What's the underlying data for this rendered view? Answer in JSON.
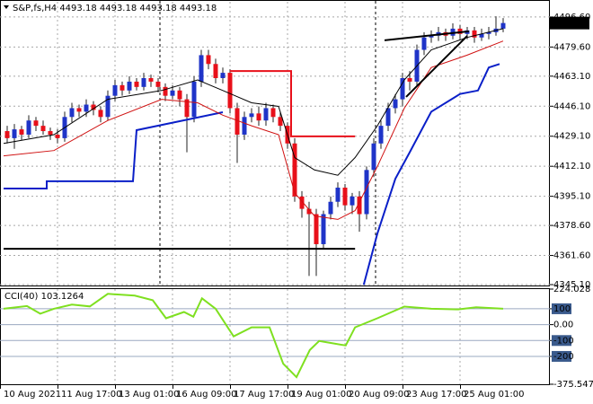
{
  "chart_data": [
    {
      "type": "candlestick",
      "title": "S&P,fs,H4  4493.18 4493.18 4493.18 4493.18",
      "up_color": "#1f34c8",
      "down_color": "#e8101a",
      "price_tag": 4493.18,
      "grid": true,
      "xlim": [
        -1,
        75.5
      ],
      "ylim": [
        4344.6,
        4505.2
      ],
      "yticks": [
        {
          "value": 4496.6,
          "label": "4496.60"
        },
        {
          "value": 4479.6,
          "label": "4479.60"
        },
        {
          "value": 4463.1,
          "label": "4463.10"
        },
        {
          "value": 4446.1,
          "label": "4446.10"
        },
        {
          "value": 4429.1,
          "label": "4429.10"
        },
        {
          "value": 4412.1,
          "label": "4412.10"
        },
        {
          "value": 4395.1,
          "label": "4395.10"
        },
        {
          "value": 4378.6,
          "label": "4378.60"
        },
        {
          "value": 4361.6,
          "label": "4361.60"
        },
        {
          "value": 4345.1,
          "label": "4345.10"
        }
      ],
      "xticks": [
        {
          "value": -1,
          "label": "10 Aug 2021"
        },
        {
          "value": 7,
          "label": "11 Aug 17:00"
        },
        {
          "value": 15,
          "label": "13 Aug 01:00"
        },
        {
          "value": 23,
          "label": "16 Aug 09:00"
        },
        {
          "value": 31,
          "label": "17 Aug 17:00"
        },
        {
          "value": 39,
          "label": "19 Aug 01:00"
        },
        {
          "value": 47,
          "label": "20 Aug 09:00"
        },
        {
          "value": 55,
          "label": "23 Aug 17:00"
        },
        {
          "value": 63,
          "label": "25 Aug 01:00"
        }
      ],
      "open": [
        4432,
        4428,
        4433,
        4430,
        4438,
        4435,
        4432,
        4430,
        4428,
        4440,
        4445,
        4443,
        4447,
        4444,
        4440,
        4452,
        4458,
        4455,
        4460,
        4457,
        4462,
        4460,
        4457,
        4452,
        4455,
        4450,
        4440,
        4460,
        4475,
        4470,
        4462,
        4465,
        4445,
        4430,
        4440,
        4442,
        4438,
        4445,
        4440,
        4435,
        4425,
        4395,
        4388,
        4385,
        4368,
        4385,
        4392,
        4400,
        4390,
        4395,
        4385,
        4410,
        4425,
        4435,
        4445,
        4450,
        4462,
        4460,
        4478,
        4485,
        4486,
        4488,
        4486,
        4490,
        4487,
        4489,
        4485,
        4487,
        4488,
        4490
      ],
      "high": [
        4435,
        4436,
        4435,
        4441,
        4440,
        4438,
        4434,
        4433,
        4443,
        4448,
        4447,
        4450,
        4449,
        4446,
        4455,
        4461,
        4460,
        4463,
        4462,
        4465,
        4464,
        4462,
        4459,
        4458,
        4457,
        4453,
        4463,
        4478,
        4478,
        4473,
        4468,
        4467,
        4448,
        4443,
        4445,
        4446,
        4448,
        4447,
        4443,
        4437,
        4428,
        4398,
        4392,
        4388,
        4387,
        4395,
        4403,
        4402,
        4397,
        4398,
        4412,
        4428,
        4438,
        4448,
        4453,
        4465,
        4466,
        4481,
        4488,
        4489,
        4491,
        4490,
        4493,
        4492,
        4491,
        4491,
        4490,
        4491,
        4497,
        4496
      ],
      "low": [
        4425,
        4422,
        4427,
        4428,
        4432,
        4430,
        4427,
        4425,
        4426,
        4437,
        4440,
        4440,
        4441,
        4437,
        4438,
        4449,
        4452,
        4453,
        4455,
        4455,
        4457,
        4454,
        4449,
        4450,
        4446,
        4420,
        4437,
        4457,
        4467,
        4459,
        4459,
        4442,
        4414,
        4427,
        4437,
        4435,
        4435,
        4437,
        4432,
        4422,
        4392,
        4383,
        4350,
        4350,
        4365,
        4382,
        4389,
        4387,
        4385,
        4375,
        4382,
        4406,
        4422,
        4432,
        4442,
        4446,
        4455,
        4457,
        4475,
        4482,
        4483,
        4483,
        4484,
        4484,
        4484,
        4482,
        4483,
        4484,
        4486,
        4488
      ],
      "close": [
        4428,
        4433,
        4430,
        4438,
        4435,
        4432,
        4430,
        4428,
        4440,
        4445,
        4443,
        4447,
        4444,
        4440,
        4452,
        4458,
        4455,
        4460,
        4457,
        4462,
        4460,
        4457,
        4452,
        4455,
        4450,
        4440,
        4460,
        4475,
        4470,
        4462,
        4465,
        4445,
        4430,
        4440,
        4442,
        4438,
        4445,
        4440,
        4435,
        4425,
        4395,
        4388,
        4385,
        4368,
        4385,
        4392,
        4400,
        4390,
        4395,
        4385,
        4410,
        4425,
        4435,
        4445,
        4450,
        4462,
        4460,
        4478,
        4485,
        4486,
        4488,
        4486,
        4490,
        4487,
        4489,
        4485,
        4487,
        4488,
        4490,
        4493.18
      ],
      "series": [
        {
          "color": "#0a1fc8",
          "width": 2,
          "x": [
            -0.5,
            5.5,
            5.5,
            17.5,
            18,
            30,
            40,
            49.6,
            51.5,
            54,
            56,
            59,
            63,
            65.5,
            67,
            68.5
          ],
          "values": [
            4399.5,
            4399.5,
            4403.6,
            4403.6,
            4432.5,
            4442.7,
            null,
            4345,
            4374,
            4405,
            4420,
            4443,
            4453,
            4455,
            4468,
            4470
          ]
        },
        {
          "color": "#000000",
          "width": 1,
          "x": [
            -0.5,
            6.5,
            14,
            21.5,
            26.5,
            30,
            34,
            37.75,
            40,
            42.75,
            46,
            48.4,
            51.5,
            55.25,
            59,
            64,
            69
          ],
          "values": [
            4425,
            4430,
            4450,
            4455,
            4461,
            4455,
            4448,
            4446,
            4417,
            4410,
            4407,
            4417,
            4435,
            4461,
            4478,
            4485,
            4490
          ]
        },
        {
          "color": "#d01010",
          "width": 1,
          "x": [
            -0.5,
            6.5,
            14,
            21.5,
            26.5,
            30,
            34,
            37.75,
            40,
            42.75,
            46,
            48.4,
            51.5,
            55.25,
            59,
            64,
            69
          ],
          "values": [
            4418,
            4421,
            4438,
            4450,
            4448,
            4441,
            4435,
            4430,
            4397,
            4384,
            4382,
            4387,
            4412,
            4445,
            4468,
            4475,
            4483
          ]
        },
        {
          "color": "#e8101a",
          "width": 2,
          "x": [
            31,
            39.5,
            39.5,
            48.4
          ],
          "values": [
            4466,
            4466,
            4429,
            4429
          ]
        },
        {
          "color": "#000000",
          "width": 2,
          "x": [
            -0.5,
            48.4
          ],
          "values": [
            4365.4,
            4365.4
          ]
        },
        {
          "color": "#000000",
          "width": 2,
          "x": [
            52.5,
            64.25
          ],
          "values": [
            4483.4,
            4488.5
          ]
        },
        {
          "color": "#000000",
          "width": 2,
          "x": [
            55.5,
            64
          ],
          "values": [
            4451.4,
            4485.9
          ]
        }
      ]
    },
    {
      "type": "line",
      "title": "CCI(40) 103.1264",
      "xlim": [
        -1,
        75.5
      ],
      "ylim": [
        -375.5478,
        224.028
      ],
      "yticks": [
        224.028,
        100,
        {
          "value": 0,
          "label": "0.00"
        },
        -100,
        -200,
        -375.5478
      ],
      "levels": [
        100,
        0,
        -100,
        -200
      ],
      "series": [
        {
          "color": "#7fe020",
          "width": 2,
          "x": [
            -0.5,
            2.75,
            4.6,
            6.5,
            9,
            11.5,
            14,
            17.75,
            20.25,
            22.1,
            24.6,
            25.9,
            27.1,
            29,
            31.5,
            34,
            36.5,
            38.4,
            40.25,
            42.1,
            43.4,
            47.1,
            48.4,
            51.5,
            55.25,
            59,
            62.75,
            65.25,
            69
          ],
          "values": [
            100,
            117,
            69,
            100,
            126,
            115,
            194,
            183,
            154,
            40,
            80,
            50,
            166,
            100,
            -74,
            -17,
            -17,
            -246,
            -331,
            -160,
            -103,
            -131,
            -17,
            40,
            114,
            100,
            96,
            110,
            100
          ]
        }
      ]
    }
  ]
}
